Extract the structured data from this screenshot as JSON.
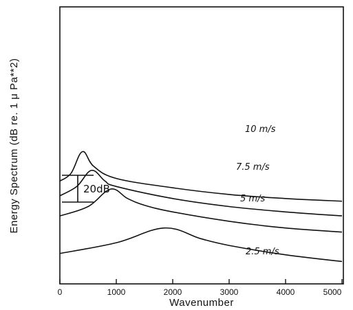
{
  "chart_data": {
    "type": "line",
    "title": "",
    "xlabel": "Wavenumber",
    "ylabel": "Energy Spectrum (dB re. 1 μ Pa**2)",
    "xlim": [
      0,
      5000
    ],
    "x_ticks": [
      "0",
      "1000",
      "2000",
      "3000",
      "4000",
      "5000"
    ],
    "y_ticks_labeled": false,
    "grid": false,
    "scale_bar": {
      "label": "20dB",
      "value_db": 20
    },
    "series": [
      {
        "name": "10 m/s",
        "peak_x": 400,
        "values_db": [
          [
            0,
            49
          ],
          [
            200,
            55
          ],
          [
            400,
            71
          ],
          [
            600,
            60
          ],
          [
            1000,
            51
          ],
          [
            2000,
            44
          ],
          [
            3000,
            39
          ],
          [
            4000,
            36
          ],
          [
            5000,
            34
          ]
        ]
      },
      {
        "name": "7.5 m/s",
        "peak_x": 560,
        "values_db": [
          [
            0,
            38
          ],
          [
            300,
            45
          ],
          [
            560,
            57
          ],
          [
            800,
            49
          ],
          [
            1000,
            45
          ],
          [
            2000,
            36
          ],
          [
            3000,
            30
          ],
          [
            4000,
            26
          ],
          [
            5000,
            23
          ]
        ]
      },
      {
        "name": "5 m/s",
        "peak_x": 900,
        "values_db": [
          [
            0,
            23
          ],
          [
            500,
            30
          ],
          [
            900,
            43
          ],
          [
            1200,
            36
          ],
          [
            1500,
            31
          ],
          [
            2000,
            26
          ],
          [
            3000,
            19
          ],
          [
            4000,
            14
          ],
          [
            5000,
            11
          ]
        ]
      },
      {
        "name": "2.5 m/s",
        "peak_x": 1850,
        "values_db": [
          [
            0,
            -5
          ],
          [
            1000,
            3
          ],
          [
            1850,
            14
          ],
          [
            2500,
            6
          ],
          [
            3000,
            1
          ],
          [
            4000,
            -6
          ],
          [
            5000,
            -11
          ]
        ]
      }
    ]
  }
}
